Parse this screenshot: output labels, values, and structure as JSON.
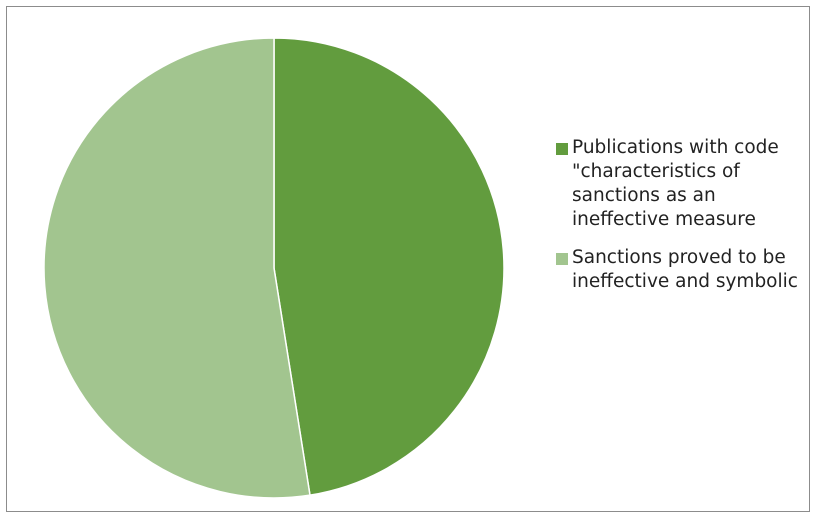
{
  "chart_data": {
    "type": "pie",
    "title": "",
    "slices": [
      {
        "label": "Publications with code \"characteristics of sanctions as an ineffective measure",
        "value": 47.5,
        "color": "#629c3e"
      },
      {
        "label": "Sanctions proved to be ineffective and symbolic",
        "value": 52.5,
        "color": "#a2c58f"
      }
    ],
    "legend_position": "right"
  }
}
